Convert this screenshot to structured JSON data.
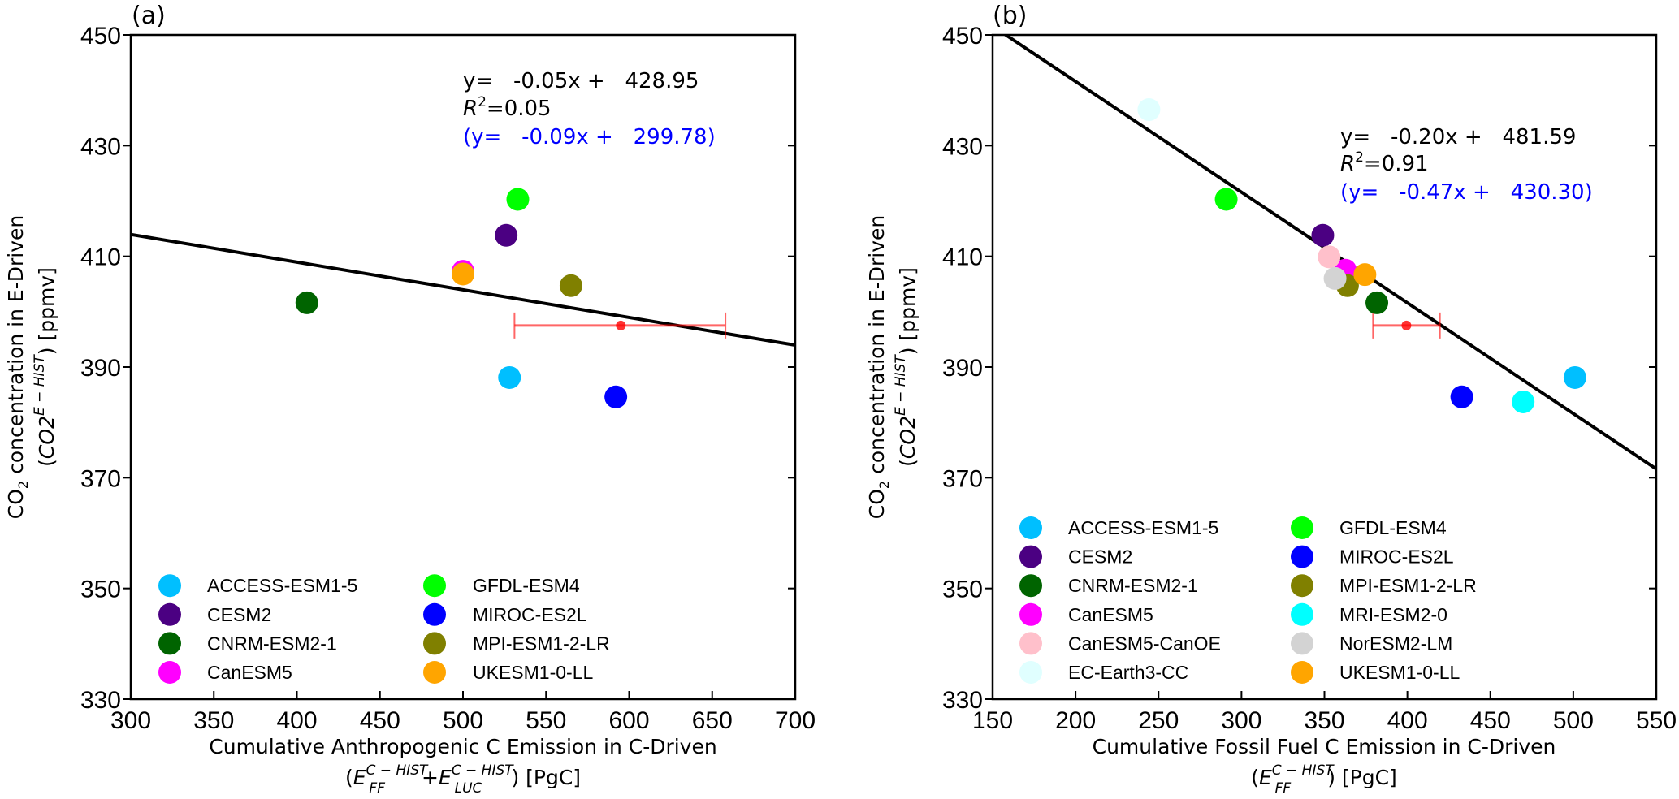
{
  "chart_data": [
    {
      "panel_label": "(a)",
      "type": "scatter",
      "xlim": [
        300,
        700
      ],
      "ylim": [
        330,
        450
      ],
      "xticks": [
        300,
        350,
        400,
        450,
        500,
        550,
        600,
        650,
        700
      ],
      "yticks": [
        330,
        350,
        370,
        390,
        410,
        430,
        450
      ],
      "grid": false,
      "xlabel": {
        "line1": "Cumulative Anthropogenic C Emission in C-Driven",
        "open": "(",
        "e1": "E",
        "e1_sub": "FF",
        "e1_sup": "C − HIST",
        "plus": "+",
        "e2": "E",
        "e2_sub": "LUC",
        "e2_sup": "C − HIST",
        "close": ") [PgC]"
      },
      "ylabel": {
        "co": "CO",
        "co_sub": "2",
        "line1_rest": " concentration in E-Driven",
        "open": "(",
        "var": "CO2",
        "var_sup": "E − HIST",
        "close": ") [ppmv]"
      },
      "series": [
        {
          "name": "ACCESS-ESM1-5",
          "color": "#00bfff",
          "x": 528,
          "y": 388.1
        },
        {
          "name": "CESM2",
          "color": "#4b0082",
          "x": 526,
          "y": 413.8
        },
        {
          "name": "CNRM-ESM2-1",
          "color": "#006400",
          "x": 406,
          "y": 401.6
        },
        {
          "name": "CanESM5",
          "color": "#ff00ff",
          "x": 500,
          "y": 407.3
        },
        {
          "name": "GFDL-ESM4",
          "color": "#00ff00",
          "x": 533,
          "y": 420.3
        },
        {
          "name": "MIROC-ES2L",
          "color": "#0000ff",
          "x": 592,
          "y": 384.6
        },
        {
          "name": "MPI-ESM1-2-LR",
          "color": "#808000",
          "x": 565,
          "y": 404.7
        },
        {
          "name": "UKESM1-0-LL",
          "color": "#ffa500",
          "x": 500,
          "y": 406.8
        }
      ],
      "observation": {
        "x": 595,
        "y": 397.5,
        "x_low": 531,
        "x_high": 658,
        "color": "#ff0000"
      },
      "fit": {
        "slope": -0.05,
        "intercept": 428.95,
        "color": "#000000",
        "equation": "y=   -0.05x +   428.95",
        "r2_symbol": "R",
        "r2_exp": "2",
        "r2_value": "=0.05",
        "alt_equation": "(y=   -0.09x +   299.78)",
        "alt_color": "#0000ff"
      },
      "legend": {
        "location": "lower-left",
        "columns": 2
      }
    },
    {
      "panel_label": "(b)",
      "type": "scatter",
      "xlim": [
        150,
        550
      ],
      "ylim": [
        330,
        450
      ],
      "xticks": [
        150,
        200,
        250,
        300,
        350,
        400,
        450,
        500,
        550
      ],
      "yticks": [
        330,
        350,
        370,
        390,
        410,
        430,
        450
      ],
      "grid": false,
      "xlabel": {
        "line1": "Cumulative Fossil Fuel C Emission in C-Driven",
        "open": "(",
        "e1": "E",
        "e1_sub": "FF",
        "e1_sup": "C − HIST",
        "close": ") [PgC]"
      },
      "ylabel": {
        "co": "CO",
        "co_sub": "2",
        "line1_rest": " concentration in E-Driven",
        "open": "(",
        "var": "CO2",
        "var_sup": "E − HIST",
        "close": ") [ppmv]"
      },
      "series": [
        {
          "name": "ACCESS-ESM1-5",
          "color": "#00bfff",
          "x": 501,
          "y": 388.1
        },
        {
          "name": "CESM2",
          "color": "#4b0082",
          "x": 349,
          "y": 413.8
        },
        {
          "name": "CNRM-ESM2-1",
          "color": "#006400",
          "x": 381.6,
          "y": 401.6
        },
        {
          "name": "CanESM5",
          "color": "#ff00ff",
          "x": 362.6,
          "y": 407.5
        },
        {
          "name": "CanESM5-CanOE",
          "color": "#ffc0cb",
          "x": 352.8,
          "y": 409.9
        },
        {
          "name": "EC-Earth3-CC",
          "color": "#e0ffff",
          "x": 244.2,
          "y": 436.5
        },
        {
          "name": "GFDL-ESM4",
          "color": "#00ff00",
          "x": 290.8,
          "y": 420.3
        },
        {
          "name": "MIROC-ES2L",
          "color": "#0000ff",
          "x": 432.8,
          "y": 384.6
        },
        {
          "name": "MPI-ESM1-2-LR",
          "color": "#808000",
          "x": 363.9,
          "y": 404.7
        },
        {
          "name": "MRI-ESM2-0",
          "color": "#00ffff",
          "x": 469.8,
          "y": 383.7
        },
        {
          "name": "NorESM2-LM",
          "color": "#d3d3d3",
          "x": 356.4,
          "y": 406.0
        },
        {
          "name": "UKESM1-0-LL",
          "color": "#ffa500",
          "x": 374.4,
          "y": 406.7
        }
      ],
      "observation": {
        "x": 399.4,
        "y": 397.5,
        "x_low": 379.3,
        "x_high": 419.6,
        "color": "#ff0000"
      },
      "fit": {
        "slope": -0.2,
        "intercept": 481.59,
        "color": "#000000",
        "equation": "y=   -0.20x +   481.59",
        "r2_symbol": "R",
        "r2_exp": "2",
        "r2_value": "=0.91",
        "alt_equation": "(y=   -0.47x +   430.30)",
        "alt_color": "#0000ff"
      },
      "legend": {
        "location": "lower-left",
        "columns": 2
      }
    }
  ]
}
